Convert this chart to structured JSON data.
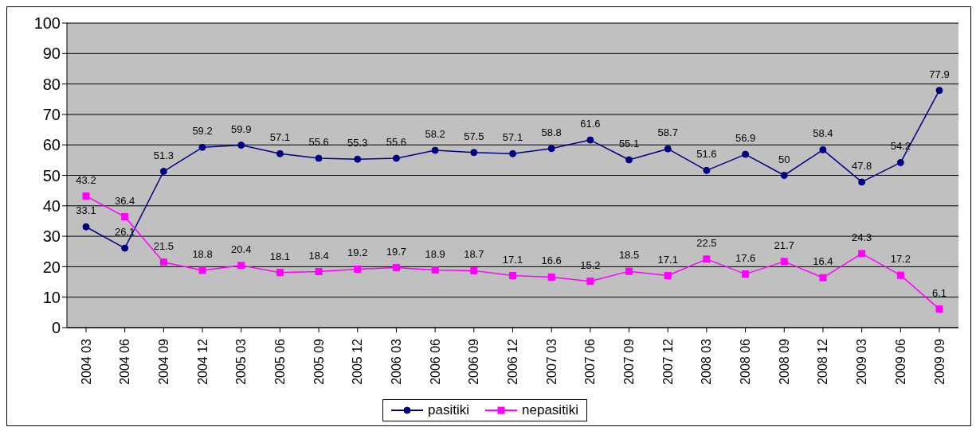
{
  "chart_data": {
    "type": "line",
    "categories": [
      "2004 03",
      "2004 06",
      "2004 09",
      "2004 12",
      "2005 03",
      "2005 06",
      "2005 09",
      "2005 12",
      "2006 03",
      "2006 06",
      "2006 09",
      "2006 12",
      "2007 03",
      "2007 06",
      "2007 09",
      "2007 12",
      "2008 03",
      "2008 06",
      "2008 09",
      "2008 12",
      "2009 03",
      "2009 06",
      "2009 09"
    ],
    "series": [
      {
        "name": "pasitiki",
        "color": "#000080",
        "marker": "circle",
        "values": [
          33.1,
          26.1,
          51.3,
          59.2,
          59.9,
          57.1,
          55.6,
          55.3,
          55.6,
          58.2,
          57.5,
          57.1,
          58.8,
          61.6,
          55.1,
          58.7,
          51.6,
          56.9,
          50,
          58.4,
          47.8,
          54.2,
          77.9
        ]
      },
      {
        "name": "nepasitiki",
        "color": "#ff00ff",
        "marker": "square",
        "values": [
          43.2,
          36.4,
          21.5,
          18.8,
          20.4,
          18.1,
          18.4,
          19.2,
          19.7,
          18.9,
          18.7,
          17.1,
          16.6,
          15.2,
          18.5,
          17.1,
          22.5,
          17.6,
          21.7,
          16.4,
          24.3,
          17.2,
          6.1
        ]
      }
    ],
    "ylim": [
      0,
      100
    ],
    "yticks": [
      0,
      10,
      20,
      30,
      40,
      50,
      60,
      70,
      80,
      90,
      100
    ],
    "grid": "y",
    "legend": "bottom",
    "data_labels": true,
    "line_style": "solid"
  }
}
